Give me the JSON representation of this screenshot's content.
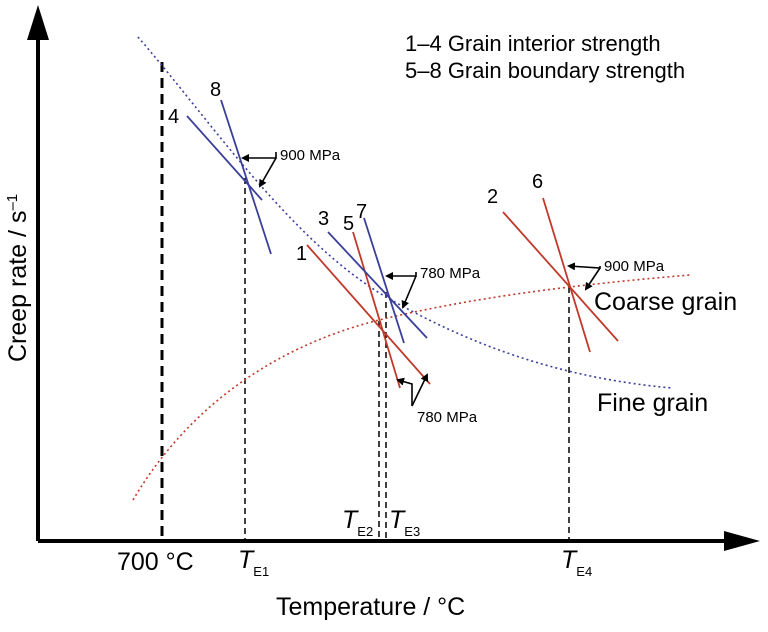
{
  "legend": {
    "line1": "1–4 Grain interior strength",
    "line2": "5–8 Grain boundary strength"
  },
  "axes": {
    "y_label": "Creep rate / s",
    "y_label_sup": "–1",
    "x_label": "Temperature / °C",
    "tick_700": "700 ",
    "tick_700_unit": "°C"
  },
  "curves": {
    "coarse": "Coarse grain",
    "fine": "Fine grain"
  },
  "line_labels": [
    "1",
    "2",
    "3",
    "4",
    "5",
    "6",
    "7",
    "8"
  ],
  "stress_labels": {
    "s900_left": "900 MPa",
    "s780_upper": "780 MPa",
    "s780_lower": "780 MPa",
    "s900_right": "900 MPa"
  },
  "equicohesive": [
    {
      "T": "T",
      "sub": "E1"
    },
    {
      "T": "T",
      "sub": "E2"
    },
    {
      "T": "T",
      "sub": "E3"
    },
    {
      "T": "T",
      "sub": "E4"
    }
  ],
  "colors": {
    "interior": "#c0392b",
    "boundary": "#3a3f9a",
    "axis": "#000000"
  }
}
